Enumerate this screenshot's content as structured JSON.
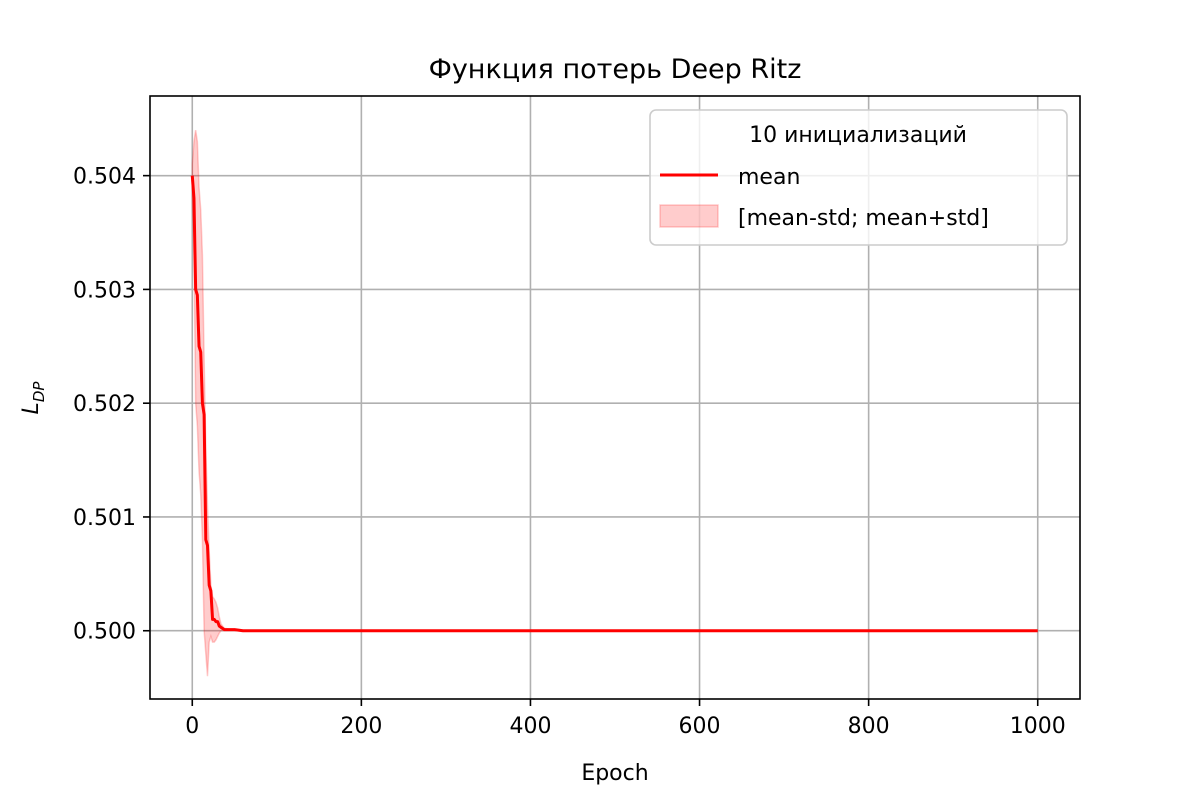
{
  "chart_data": {
    "type": "line",
    "title": "Функция потерь Deep Ritz",
    "xlabel": "Epoch",
    "ylabel_main": "L",
    "ylabel_sub": "DP",
    "xlim": [
      -50,
      1050
    ],
    "ylim": [
      0.4994,
      0.5047
    ],
    "xticks": [
      0,
      200,
      400,
      600,
      800,
      1000
    ],
    "xtick_labels": [
      "0",
      "200",
      "400",
      "600",
      "800",
      "1000"
    ],
    "yticks": [
      0.5,
      0.501,
      0.502,
      0.503,
      0.504
    ],
    "ytick_labels": [
      "0.500",
      "0.501",
      "0.502",
      "0.503",
      "0.504"
    ],
    "grid": true,
    "legend_position": "top-right",
    "legend_title": "10 инициализаций",
    "series": [
      {
        "name": "mean",
        "role": "line",
        "color": "#ff0000",
        "x": [
          0,
          2,
          4,
          6,
          8,
          10,
          12,
          14,
          16,
          18,
          20,
          22,
          24,
          26,
          28,
          30,
          32,
          34,
          36,
          38,
          40,
          45,
          50,
          60,
          80,
          100,
          150,
          200,
          400,
          600,
          800,
          1000
        ],
        "y": [
          0.504,
          0.5038,
          0.503,
          0.50295,
          0.5025,
          0.50245,
          0.502,
          0.5019,
          0.5008,
          0.50075,
          0.5004,
          0.50035,
          0.5001,
          0.5001,
          0.50008,
          0.50008,
          0.50004,
          0.50003,
          0.50002,
          0.50001,
          0.50001,
          0.50001,
          0.50001,
          0.5,
          0.5,
          0.5,
          0.5,
          0.5,
          0.5,
          0.5,
          0.5,
          0.5
        ]
      },
      {
        "name": "[mean-std; mean+std]",
        "role": "band",
        "color": "#ff0000",
        "opacity": 0.2,
        "x": [
          0,
          2,
          4,
          6,
          8,
          10,
          12,
          14,
          16,
          18,
          20,
          22,
          24,
          26,
          28,
          30,
          32,
          34,
          36,
          38,
          40,
          45,
          50,
          60,
          80,
          100,
          150,
          200,
          400,
          600,
          800,
          1000
        ],
        "lower": [
          0.5038,
          0.5033,
          0.502,
          0.5018,
          0.5014,
          0.5012,
          0.5008,
          0.5,
          0.4998,
          0.4996,
          0.4999,
          0.49995,
          0.4999,
          0.4999,
          0.49992,
          0.49995,
          0.49998,
          0.5,
          0.5,
          0.5,
          0.5,
          0.5,
          0.5,
          0.5,
          0.5,
          0.5,
          0.5,
          0.5,
          0.5,
          0.5,
          0.5,
          0.5
        ],
        "upper": [
          0.5041,
          0.5043,
          0.5044,
          0.5043,
          0.5039,
          0.5037,
          0.5033,
          0.5024,
          0.5016,
          0.5011,
          0.5007,
          0.5004,
          0.5003,
          0.50028,
          0.50025,
          0.5002,
          0.50012,
          0.50006,
          0.50004,
          0.50002,
          0.50002,
          0.50001,
          0.50001,
          0.5,
          0.5,
          0.5,
          0.5,
          0.5,
          0.5,
          0.5,
          0.5,
          0.5
        ]
      }
    ]
  }
}
